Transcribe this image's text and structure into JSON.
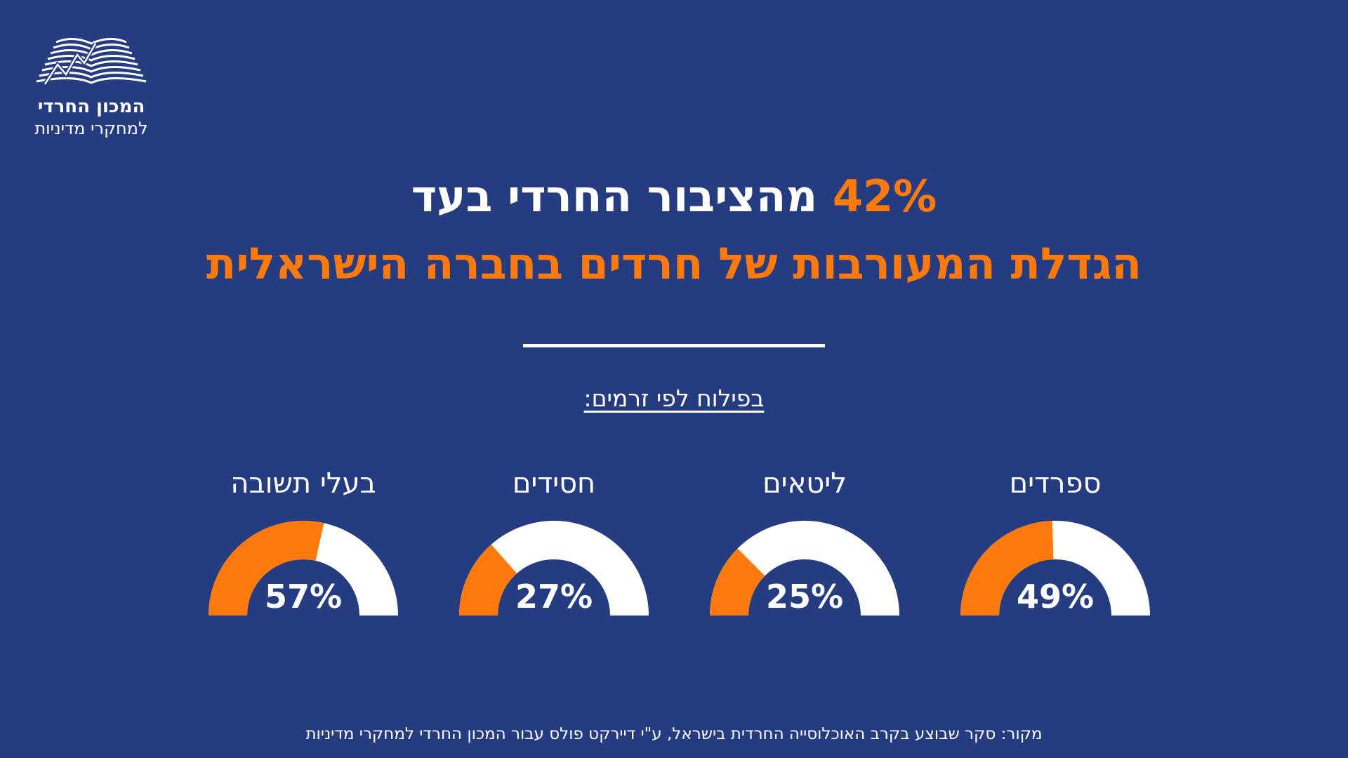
{
  "logo": {
    "line1": "המכון החרדי",
    "line2": "למחקרי מדיניות"
  },
  "title": {
    "line1_highlight": "42%",
    "line1_rest": "מהציבור החרדי בעד",
    "line2": "הגדלת המעורבות של חרדים בחברה הישראלית"
  },
  "subtitle": "בפילוח לפי זרמים:",
  "source": "מקור: סקר שבוצע בקרב האוכלוסייה החרדית בישראל, ע\"י דיירקט פולס עבור המכון החרדי למחקרי מדיניות",
  "colors": {
    "background": "#263c80",
    "accent": "#ff7a0d",
    "track": "#ffffff"
  },
  "chart_data": {
    "type": "gauge",
    "unit": "%",
    "range": [
      0,
      100
    ],
    "categories": [
      "ספרדים",
      "ליטאים",
      "חסידים",
      "בעלי תשובה"
    ],
    "values": [
      49,
      25,
      27,
      57
    ],
    "value_labels": [
      "49%",
      "25%",
      "27%",
      "57%"
    ]
  }
}
